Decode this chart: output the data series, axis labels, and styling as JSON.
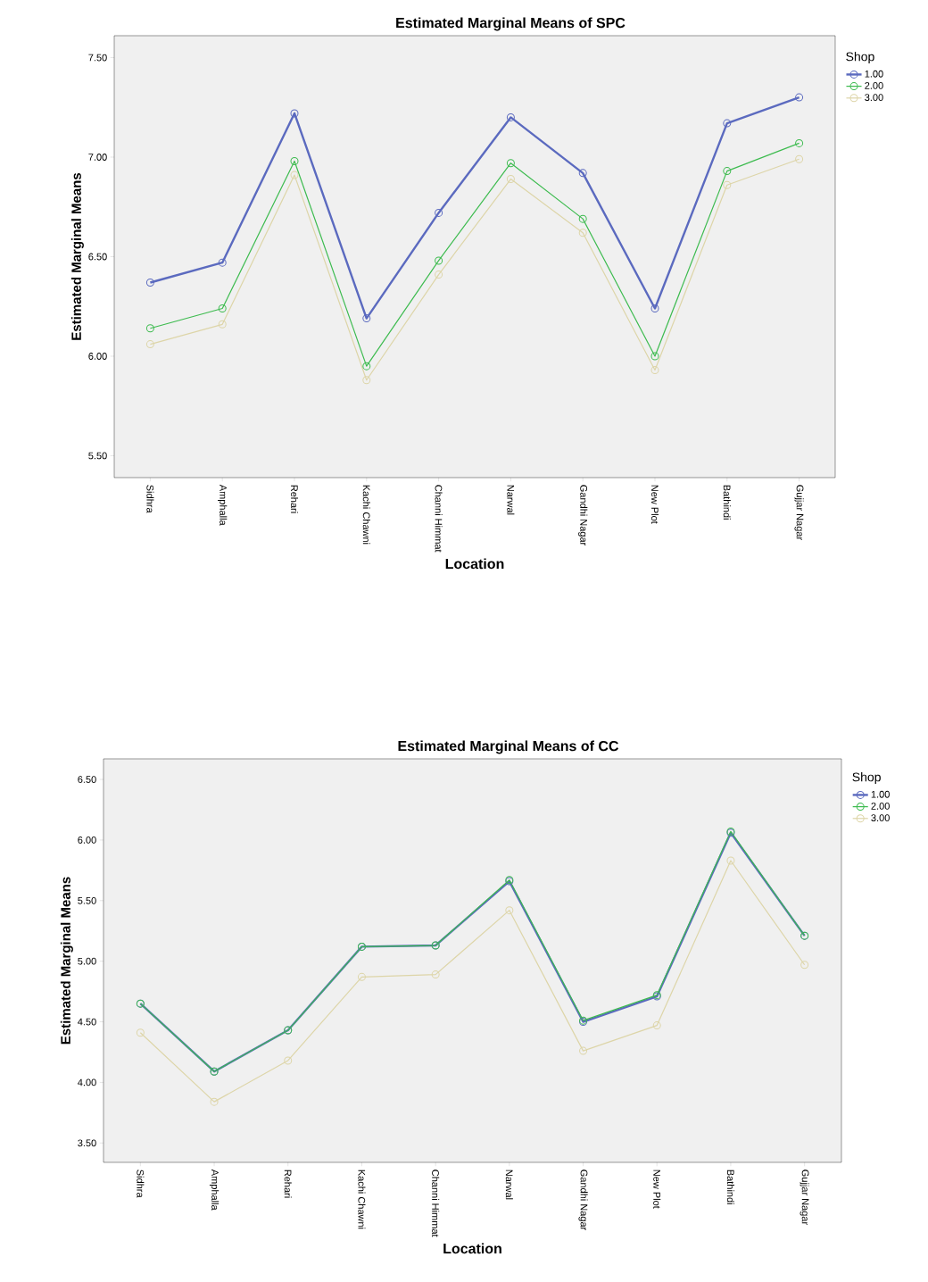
{
  "chart_data": [
    {
      "type": "line",
      "title": "Estimated Marginal Means of SPC",
      "xlabel": "Location",
      "ylabel": "Estimated Marginal Means",
      "legend_title": "Shop",
      "legend": "top right",
      "marker": "circle",
      "grid": false,
      "categories": [
        "Sidhra",
        "Amphalla",
        "Rehari",
        "Kachi Chawni",
        "Channi Himmat",
        "Narwal",
        "Gandhi Nagar",
        "New Plot",
        "Bathindi",
        "Gujjar Nagar"
      ],
      "series": [
        {
          "name": "1.00",
          "color": "#5b6abf",
          "values": [
            6.37,
            6.47,
            7.22,
            6.19,
            6.72,
            7.2,
            6.92,
            6.24,
            7.17,
            7.3
          ]
        },
        {
          "name": "2.00",
          "color": "#3dbb4f",
          "values": [
            6.14,
            6.24,
            6.98,
            5.95,
            6.48,
            6.97,
            6.69,
            6.0,
            6.93,
            7.07
          ]
        },
        {
          "name": "3.00",
          "color": "#ddd5a8",
          "values": [
            6.06,
            6.16,
            6.91,
            5.88,
            6.41,
            6.89,
            6.62,
            5.93,
            6.86,
            6.99
          ]
        }
      ],
      "ylim": [
        5.39,
        7.61
      ],
      "yticks": [
        {
          "value": 5.5,
          "label": "5.50"
        },
        {
          "value": 6,
          "label": "6.00"
        },
        {
          "value": 6.5,
          "label": "6.50"
        },
        {
          "value": 7,
          "label": "7.00"
        },
        {
          "value": 7.5,
          "label": "7.50"
        }
      ]
    },
    {
      "type": "line",
      "title": "Estimated Marginal Means of CC",
      "xlabel": "Location",
      "ylabel": "Estimated Marginal Means",
      "legend_title": "Shop",
      "legend": "top right",
      "marker": "circle",
      "grid": false,
      "categories": [
        "Sidhra",
        "Amphalla",
        "Rehari",
        "Kachi Chawni",
        "Channi Himmat",
        "Narwal",
        "Gandhi Nagar",
        "New Plot",
        "Bathindi",
        "Gujjar Nagar"
      ],
      "series": [
        {
          "name": "1.00",
          "color": "#5b6abf",
          "values": [
            4.65,
            4.09,
            4.43,
            5.12,
            5.13,
            5.66,
            4.5,
            4.71,
            6.06,
            5.21
          ]
        },
        {
          "name": "2.00",
          "color": "#3dbb4f",
          "values": [
            4.65,
            4.09,
            4.43,
            5.12,
            5.13,
            5.67,
            4.51,
            4.72,
            6.07,
            5.21
          ]
        },
        {
          "name": "3.00",
          "color": "#ddd5a8",
          "values": [
            4.41,
            3.84,
            4.18,
            4.87,
            4.89,
            5.42,
            4.26,
            4.47,
            5.83,
            4.97
          ]
        }
      ],
      "ylim": [
        3.34,
        6.67
      ],
      "yticks": [
        {
          "value": 3.5,
          "label": "3.50"
        },
        {
          "value": 4,
          "label": "4.00"
        },
        {
          "value": 4.5,
          "label": "4.50"
        },
        {
          "value": 5,
          "label": "5.00"
        },
        {
          "value": 5.5,
          "label": "5.50"
        },
        {
          "value": 6,
          "label": "6.00"
        },
        {
          "value": 6.5,
          "label": "6.50"
        }
      ]
    }
  ]
}
